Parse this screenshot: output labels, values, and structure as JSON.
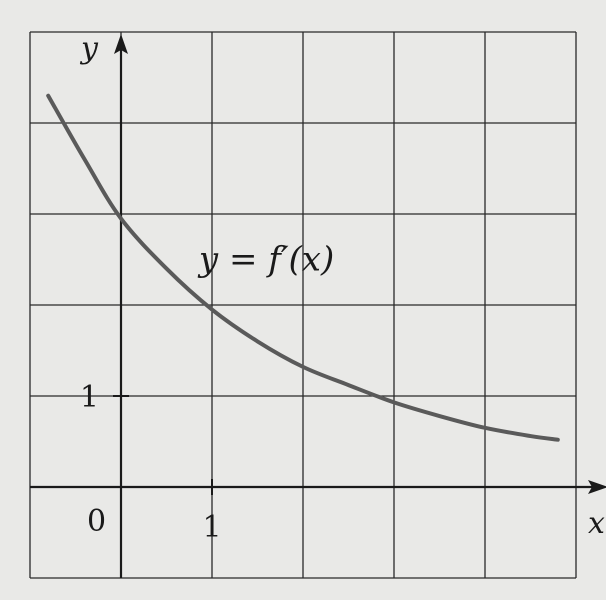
{
  "chart_data": {
    "type": "line",
    "title": "",
    "xlabel": "x",
    "ylabel": "y",
    "xlim": [
      -1,
      5
    ],
    "ylim": [
      -1,
      5
    ],
    "grid": true,
    "origin_label": "0",
    "x_ticks": [
      {
        "value": 1,
        "label": "1"
      }
    ],
    "y_ticks": [
      {
        "value": 1,
        "label": "1"
      }
    ],
    "series": [
      {
        "name": "",
        "color": "#5a5a5a",
        "x": [
          -0.8,
          -0.4,
          0,
          0.5,
          1,
          1.5,
          2,
          2.5,
          3,
          3.5,
          4,
          4.5,
          4.8
        ],
        "y": [
          4.3,
          3.6,
          2.95,
          2.4,
          1.95,
          1.6,
          1.32,
          1.12,
          0.93,
          0.78,
          0.65,
          0.56,
          0.52
        ]
      }
    ],
    "annotations": [
      {
        "text": "y = f′(x)",
        "x": 1.6,
        "y": 2.38
      }
    ]
  }
}
